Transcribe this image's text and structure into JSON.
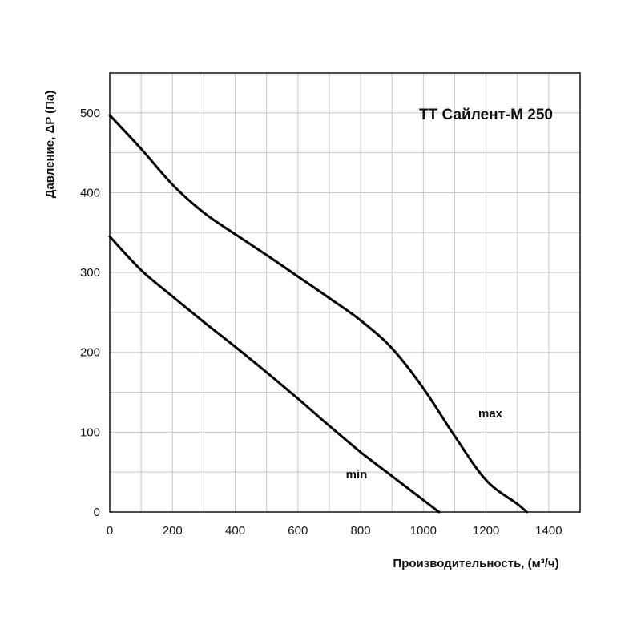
{
  "chart_data": {
    "type": "line",
    "title": "ТТ Сайлент-М 250",
    "xlabel": "Производительность, (м³/ч)",
    "ylabel": "Давление, ΔP (Па)",
    "xlim": [
      0,
      1500
    ],
    "ylim": [
      0,
      550
    ],
    "x_ticks": [
      0,
      200,
      400,
      600,
      800,
      1000,
      1200,
      1400
    ],
    "y_ticks": [
      0,
      100,
      200,
      300,
      400,
      500
    ],
    "grid": true,
    "series": [
      {
        "name": "max",
        "x": [
          0,
          100,
          200,
          300,
          400,
          500,
          600,
          700,
          800,
          900,
          1000,
          1100,
          1200,
          1300,
          1330
        ],
        "y": [
          497,
          455,
          410,
          375,
          348,
          322,
          295,
          268,
          240,
          205,
          155,
          95,
          40,
          10,
          0
        ]
      },
      {
        "name": "min",
        "x": [
          0,
          100,
          200,
          300,
          400,
          500,
          600,
          700,
          800,
          900,
          1000,
          1050
        ],
        "y": [
          345,
          303,
          270,
          238,
          207,
          175,
          142,
          108,
          75,
          45,
          15,
          0
        ]
      }
    ]
  }
}
